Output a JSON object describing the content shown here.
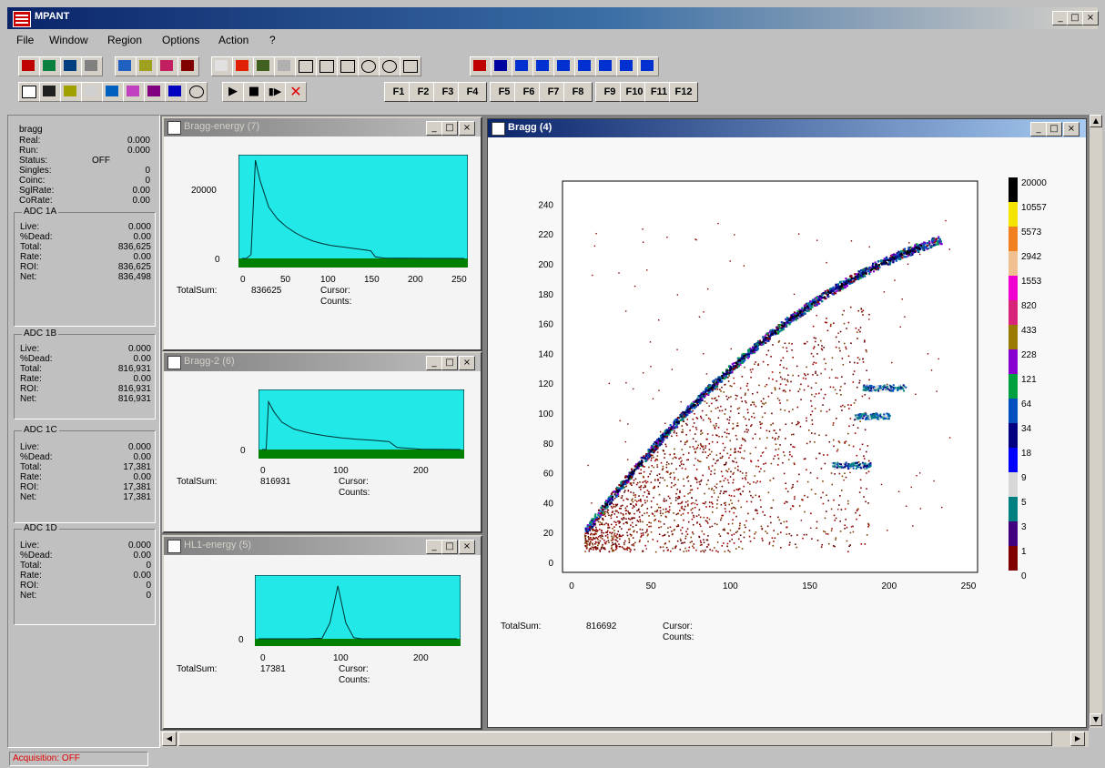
{
  "app": {
    "title": "MPANT"
  },
  "menu": [
    "File",
    "Window",
    "Region",
    "Options",
    "Action",
    "?"
  ],
  "fkeys": [
    "F1",
    "F2",
    "F3",
    "F4",
    "F5",
    "F6",
    "F7",
    "F8",
    "F9",
    "F10",
    "F11",
    "F12"
  ],
  "left": {
    "name": "bragg",
    "rows": [
      {
        "label": "Real:",
        "value": "0.000"
      },
      {
        "label": "Run:",
        "value": "0.000"
      },
      {
        "label": "Status:",
        "value": "OFF"
      },
      {
        "label": "Singles:",
        "value": "0"
      },
      {
        "label": "Coinc:",
        "value": "0"
      },
      {
        "label": "SglRate:",
        "value": "0.00"
      },
      {
        "label": "CoRate:",
        "value": "0.00"
      }
    ],
    "groups": [
      {
        "title": "ADC 1A",
        "rows": [
          {
            "label": "Live:",
            "value": "0.000"
          },
          {
            "label": "%Dead:",
            "value": "0.00"
          },
          {
            "label": "Total:",
            "value": "836,625"
          },
          {
            "label": "Rate:",
            "value": "0.00"
          },
          {
            "label": "ROI:",
            "value": "836,625"
          },
          {
            "label": "Net:",
            "value": "836,498"
          }
        ]
      },
      {
        "title": "ADC 1B",
        "rows": [
          {
            "label": "Live:",
            "value": "0.000"
          },
          {
            "label": "%Dead:",
            "value": "0.00"
          },
          {
            "label": "Total:",
            "value": "816,931"
          },
          {
            "label": "Rate:",
            "value": "0.00"
          },
          {
            "label": "ROI:",
            "value": "816,931"
          },
          {
            "label": "Net:",
            "value": "816,931"
          }
        ]
      },
      {
        "title": "ADC 1C",
        "rows": [
          {
            "label": "Live:",
            "value": "0.000"
          },
          {
            "label": "%Dead:",
            "value": "0.00"
          },
          {
            "label": "Total:",
            "value": "17,381"
          },
          {
            "label": "Rate:",
            "value": "0.00"
          },
          {
            "label": "ROI:",
            "value": "17,381"
          },
          {
            "label": "Net:",
            "value": "17,381"
          }
        ]
      },
      {
        "title": "ADC 1D",
        "rows": [
          {
            "label": "Live:",
            "value": "0.000"
          },
          {
            "label": "%Dead:",
            "value": "0.00"
          },
          {
            "label": "Total:",
            "value": "0"
          },
          {
            "label": "Rate:",
            "value": "0.00"
          },
          {
            "label": "ROI:",
            "value": "0"
          },
          {
            "label": "Net:",
            "value": "0"
          }
        ]
      }
    ]
  },
  "win1": {
    "title": "Bragg-energy (7)",
    "total_label": "TotalSum:",
    "total": "836625",
    "cursor": "Cursor:",
    "counts": "Counts:",
    "yticks": [
      "20000",
      "0"
    ],
    "xticks": [
      "0",
      "50",
      "100",
      "150",
      "200",
      "250"
    ]
  },
  "win2": {
    "title": "Bragg-2 (6)",
    "total_label": "TotalSum:",
    "total": "816931",
    "cursor": "Cursor:",
    "counts": "Counts:",
    "yticks": [
      "0"
    ],
    "xticks": [
      "0",
      "100",
      "200"
    ]
  },
  "win3": {
    "title": "HL1-energy (5)",
    "total_label": "TotalSum:",
    "total": "17381",
    "cursor": "Cursor:",
    "counts": "Counts:",
    "yticks": [
      "0"
    ],
    "xticks": [
      "0",
      "100",
      "200"
    ]
  },
  "main": {
    "title": "Bragg (4)",
    "total_label": "TotalSum:",
    "total": "816692",
    "cursor": "Cursor:",
    "counts": "Counts:",
    "scale": [
      {
        "label": "20000",
        "color": "#000000"
      },
      {
        "label": "10557",
        "color": "#f5e400"
      },
      {
        "label": "5573",
        "color": "#f08020"
      },
      {
        "label": "2942",
        "color": "#f0c090"
      },
      {
        "label": "1553",
        "color": "#f000d0"
      },
      {
        "label": "820",
        "color": "#d8257a"
      },
      {
        "label": "433",
        "color": "#9a7a00"
      },
      {
        "label": "228",
        "color": "#8800d0"
      },
      {
        "label": "121",
        "color": "#00a040"
      },
      {
        "label": "64",
        "color": "#0050c0"
      },
      {
        "label": "34",
        "color": "#000080"
      },
      {
        "label": "18",
        "color": "#0000ff"
      },
      {
        "label": "9",
        "color": "#d8d8d8"
      },
      {
        "label": "5",
        "color": "#008080"
      },
      {
        "label": "3",
        "color": "#400080"
      },
      {
        "label": "1",
        "color": "#800000"
      },
      {
        "label": "0",
        "color": "#f8f8f8"
      }
    ]
  },
  "chart_data": [
    {
      "type": "line",
      "title": "Bragg-energy (7)",
      "x": [
        0,
        5,
        10,
        15,
        20,
        30,
        40,
        50,
        60,
        70,
        80,
        90,
        100,
        110,
        120,
        130,
        140,
        145,
        150,
        160,
        180,
        200,
        250
      ],
      "y": [
        0,
        0,
        1000,
        25000,
        20000,
        13000,
        10000,
        8000,
        6500,
        5300,
        4400,
        3800,
        3300,
        3000,
        2700,
        2400,
        2100,
        1900,
        400,
        100,
        50,
        20,
        0
      ],
      "xlim": [
        0,
        250
      ],
      "ylim": [
        0,
        25000
      ]
    },
    {
      "type": "line",
      "title": "Bragg-2 (6)",
      "x": [
        0,
        5,
        8,
        15,
        25,
        40,
        60,
        80,
        100,
        120,
        140,
        160,
        170,
        200,
        250
      ],
      "y": [
        0,
        0,
        14000,
        11000,
        8000,
        6000,
        4800,
        4000,
        3400,
        3000,
        2700,
        2300,
        600,
        100,
        0
      ],
      "xlim": [
        0,
        250
      ],
      "ylim": [
        0,
        16000
      ]
    },
    {
      "type": "line",
      "title": "HL1-energy (5)",
      "x": [
        0,
        60,
        80,
        90,
        100,
        110,
        120,
        130,
        250
      ],
      "y": [
        0,
        0,
        50,
        1500,
        5000,
        1500,
        100,
        0,
        0
      ],
      "xlim": [
        0,
        250
      ],
      "ylim": [
        0,
        5500
      ]
    },
    {
      "type": "heatmap",
      "title": "Bragg (4)",
      "xlim": [
        0,
        250
      ],
      "ylim": [
        0,
        250
      ],
      "xticks": [
        0,
        50,
        100,
        150,
        200,
        250
      ],
      "yticks": [
        0,
        20,
        40,
        60,
        80,
        100,
        120,
        140,
        160,
        180,
        200,
        220,
        240
      ],
      "scale": [
        0,
        1,
        3,
        5,
        9,
        18,
        34,
        64,
        121,
        228,
        433,
        820,
        1553,
        2942,
        5573,
        10557,
        20000
      ]
    }
  ]
}
